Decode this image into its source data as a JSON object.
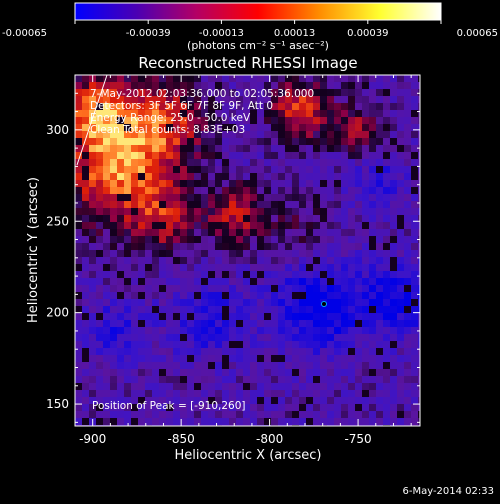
{
  "colorbar": {
    "ticks": [
      "-0.00065",
      "-0.00039",
      "-0.00013",
      "0.00013",
      "0.00039",
      "0.00065"
    ],
    "tick_values": [
      -0.00065,
      -0.00039,
      -0.00013,
      0.00013,
      0.00039,
      0.00065
    ],
    "unit_label": "(photons cm⁻² s⁻¹ asec⁻²)",
    "colors": [
      "#0000ff",
      "#4a00b4",
      "#b40064",
      "#ff0000",
      "#ff8c00",
      "#ffff30",
      "#ffffff"
    ]
  },
  "info": {
    "time_range": "7-May-2012 02:03:36.000 to 02:05:36.000",
    "detectors": "Detectors: 3F 5F 6F 7F 8F 9F, Att 0",
    "energy": "Energy Range: 25.0 - 50.0 keV",
    "clean": "Clean    Total counts: 8.83E+03",
    "peak": "Position of Peak = [-910,260]"
  },
  "footer": {
    "date": "6-May-2014 02:33"
  },
  "chart_data": {
    "type": "heatmap",
    "title": "Reconstructed RHESSI Image",
    "xlabel": "Heliocentric X (arcsec)",
    "ylabel": "Heliocentric Y (arcsec)",
    "xlim": [
      -910,
      -715
    ],
    "ylim": [
      138,
      330
    ],
    "xticks": [
      -900,
      -850,
      -800,
      -750
    ],
    "yticks": [
      150,
      200,
      250,
      300
    ],
    "value_range": [
      -0.00065,
      0.00065
    ],
    "peak_position": [
      -910,
      260
    ],
    "grid": false
  }
}
